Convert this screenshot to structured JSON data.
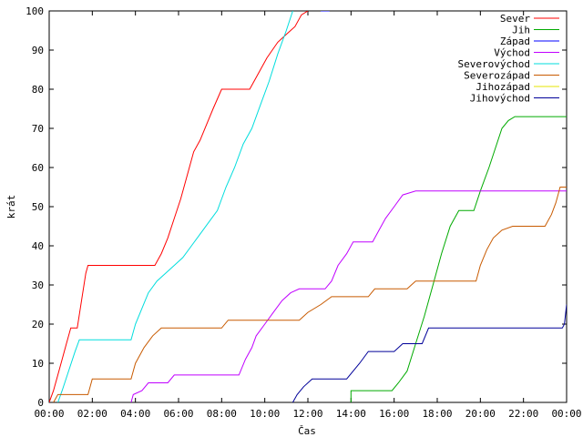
{
  "chart_data": {
    "type": "line",
    "xlabel": "Čas",
    "ylabel": "krát",
    "xlim": [
      0,
      24
    ],
    "ylim": [
      0,
      100
    ],
    "x_ticks": [
      {
        "value": 0,
        "label": "00:00"
      },
      {
        "value": 2,
        "label": "02:00"
      },
      {
        "value": 4,
        "label": "04:00"
      },
      {
        "value": 6,
        "label": "06:00"
      },
      {
        "value": 8,
        "label": "08:00"
      },
      {
        "value": 10,
        "label": "10:00"
      },
      {
        "value": 12,
        "label": "12:00"
      },
      {
        "value": 14,
        "label": "14:00"
      },
      {
        "value": 16,
        "label": "16:00"
      },
      {
        "value": 18,
        "label": "18:00"
      },
      {
        "value": 20,
        "label": "20:00"
      },
      {
        "value": 22,
        "label": "22:00"
      },
      {
        "value": 24,
        "label": "00:00"
      }
    ],
    "y_ticks": [
      0,
      10,
      20,
      30,
      40,
      50,
      60,
      70,
      80,
      90,
      100
    ],
    "grid": false,
    "legend_position": "top-right",
    "series": [
      {
        "name": "Sever",
        "color": "#ff0000",
        "points": [
          [
            0,
            0
          ],
          [
            0.2,
            3
          ],
          [
            0.4,
            7
          ],
          [
            0.6,
            11
          ],
          [
            0.8,
            15
          ],
          [
            1.0,
            19
          ],
          [
            1.3,
            19
          ],
          [
            1.5,
            26
          ],
          [
            1.7,
            33
          ],
          [
            1.8,
            35
          ],
          [
            4.9,
            35
          ],
          [
            5.2,
            38
          ],
          [
            5.5,
            42
          ],
          [
            5.8,
            47
          ],
          [
            6.1,
            52
          ],
          [
            6.4,
            58
          ],
          [
            6.7,
            64
          ],
          [
            7.0,
            67
          ],
          [
            7.3,
            71
          ],
          [
            7.6,
            75
          ],
          [
            8.0,
            80
          ],
          [
            9.3,
            80
          ],
          [
            9.7,
            84
          ],
          [
            10.1,
            88
          ],
          [
            10.6,
            92
          ],
          [
            11.0,
            94
          ],
          [
            11.4,
            96
          ],
          [
            11.7,
            99
          ],
          [
            12.0,
            100
          ]
        ]
      },
      {
        "name": "Jih",
        "color": "#00aa00",
        "points": [
          [
            14.0,
            0
          ],
          [
            14.0,
            3
          ],
          [
            15.9,
            3
          ],
          [
            16.2,
            5
          ],
          [
            16.6,
            8
          ],
          [
            17.0,
            15
          ],
          [
            17.4,
            22
          ],
          [
            17.8,
            30
          ],
          [
            18.2,
            38
          ],
          [
            18.6,
            45
          ],
          [
            19.0,
            49
          ],
          [
            19.7,
            49
          ],
          [
            20.0,
            54
          ],
          [
            20.4,
            60
          ],
          [
            20.7,
            65
          ],
          [
            21.0,
            70
          ],
          [
            21.3,
            72
          ],
          [
            21.6,
            73
          ],
          [
            24.0,
            73
          ]
        ]
      },
      {
        "name": "Západ",
        "color": "#0000ff",
        "points": [
          [
            12.6,
            100
          ],
          [
            13.0,
            100
          ]
        ]
      },
      {
        "name": "Východ",
        "color": "#c000ff",
        "points": [
          [
            3.8,
            0
          ],
          [
            3.9,
            2
          ],
          [
            4.3,
            3
          ],
          [
            4.6,
            5
          ],
          [
            5.5,
            5
          ],
          [
            5.8,
            7
          ],
          [
            8.8,
            7
          ],
          [
            9.1,
            11
          ],
          [
            9.4,
            14
          ],
          [
            9.6,
            17
          ],
          [
            10.0,
            20
          ],
          [
            10.4,
            23
          ],
          [
            10.8,
            26
          ],
          [
            11.2,
            28
          ],
          [
            11.6,
            29
          ],
          [
            12.8,
            29
          ],
          [
            13.1,
            31
          ],
          [
            13.4,
            35
          ],
          [
            13.8,
            38
          ],
          [
            14.1,
            41
          ],
          [
            15.0,
            41
          ],
          [
            15.3,
            44
          ],
          [
            15.6,
            47
          ],
          [
            16.0,
            50
          ],
          [
            16.4,
            53
          ],
          [
            17.0,
            54
          ],
          [
            24.0,
            54
          ]
        ]
      },
      {
        "name": "Severovýchod",
        "color": "#00dddd",
        "points": [
          [
            0.4,
            0
          ],
          [
            0.6,
            3
          ],
          [
            0.9,
            8
          ],
          [
            1.2,
            13
          ],
          [
            1.4,
            16
          ],
          [
            3.8,
            16
          ],
          [
            4.0,
            20
          ],
          [
            4.3,
            24
          ],
          [
            4.6,
            28
          ],
          [
            5.0,
            31
          ],
          [
            5.4,
            33
          ],
          [
            5.8,
            35
          ],
          [
            6.2,
            37
          ],
          [
            6.6,
            40
          ],
          [
            7.0,
            43
          ],
          [
            7.4,
            46
          ],
          [
            7.8,
            49
          ],
          [
            8.2,
            55
          ],
          [
            8.6,
            60
          ],
          [
            9.0,
            66
          ],
          [
            9.4,
            70
          ],
          [
            9.8,
            76
          ],
          [
            10.2,
            82
          ],
          [
            10.6,
            89
          ],
          [
            11.0,
            95
          ],
          [
            11.3,
            100
          ]
        ]
      },
      {
        "name": "Severozápad",
        "color": "#c85a00",
        "points": [
          [
            0.2,
            0
          ],
          [
            0.4,
            2
          ],
          [
            1.8,
            2
          ],
          [
            2.0,
            6
          ],
          [
            3.8,
            6
          ],
          [
            4.0,
            10
          ],
          [
            4.4,
            14
          ],
          [
            4.8,
            17
          ],
          [
            5.2,
            19
          ],
          [
            8.0,
            19
          ],
          [
            8.3,
            21
          ],
          [
            11.6,
            21
          ],
          [
            12.0,
            23
          ],
          [
            12.6,
            25
          ],
          [
            13.1,
            27
          ],
          [
            14.8,
            27
          ],
          [
            15.1,
            29
          ],
          [
            16.6,
            29
          ],
          [
            17.0,
            31
          ],
          [
            19.8,
            31
          ],
          [
            20.0,
            35
          ],
          [
            20.3,
            39
          ],
          [
            20.6,
            42
          ],
          [
            21.0,
            44
          ],
          [
            21.5,
            45
          ],
          [
            23.0,
            45
          ],
          [
            23.3,
            48
          ],
          [
            23.5,
            51
          ],
          [
            23.7,
            55
          ],
          [
            24.0,
            55
          ]
        ]
      },
      {
        "name": "Jihozápad",
        "color": "#e6e600",
        "points": []
      },
      {
        "name": "Jihovýchod",
        "color": "#000099",
        "points": [
          [
            11.3,
            0
          ],
          [
            11.5,
            2
          ],
          [
            11.8,
            4
          ],
          [
            12.2,
            6
          ],
          [
            13.8,
            6
          ],
          [
            14.1,
            8
          ],
          [
            14.4,
            10
          ],
          [
            14.8,
            13
          ],
          [
            16.0,
            13
          ],
          [
            16.4,
            15
          ],
          [
            17.3,
            15
          ],
          [
            17.6,
            19
          ],
          [
            23.8,
            19
          ],
          [
            23.9,
            20
          ],
          [
            24.0,
            25
          ]
        ]
      }
    ]
  }
}
